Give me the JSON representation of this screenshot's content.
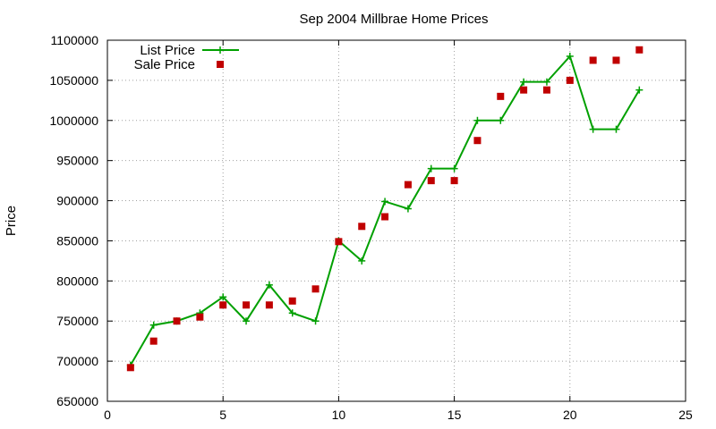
{
  "chart_data": {
    "type": "line",
    "title": "Sep 2004 Millbrae Home Prices",
    "xlabel": "",
    "ylabel": "Price",
    "xlim": [
      0,
      25
    ],
    "ylim": [
      650000,
      1100000
    ],
    "xticks": [
      0,
      5,
      10,
      15,
      20,
      25
    ],
    "yticks": [
      650000,
      700000,
      750000,
      800000,
      850000,
      900000,
      950000,
      1000000,
      1050000,
      1100000
    ],
    "grid": true,
    "legend_position": "top-left",
    "series": [
      {
        "name": "List Price",
        "style": "line-points",
        "marker": "plus",
        "color": "#00a000",
        "x": [
          1,
          2,
          3,
          4,
          5,
          6,
          7,
          8,
          9,
          10,
          11,
          12,
          13,
          14,
          15,
          16,
          17,
          18,
          19,
          20,
          21,
          22,
          23
        ],
        "values": [
          695000,
          745000,
          750000,
          760000,
          780000,
          750000,
          795000,
          760000,
          750000,
          850000,
          825000,
          899000,
          890000,
          940000,
          940000,
          1000000,
          1000000,
          1048000,
          1048000,
          1080000,
          989000,
          989000,
          1038000
        ]
      },
      {
        "name": "Sale Price",
        "style": "points",
        "marker": "square",
        "color": "#c00000",
        "x": [
          1,
          2,
          3,
          4,
          5,
          6,
          7,
          8,
          9,
          10,
          11,
          12,
          13,
          14,
          15,
          16,
          17,
          18,
          19,
          20,
          21,
          22,
          23
        ],
        "values": [
          692000,
          725000,
          750000,
          755000,
          770000,
          770000,
          770000,
          775000,
          790000,
          849000,
          868000,
          880000,
          920000,
          925000,
          925000,
          975000,
          1030000,
          1038000,
          1038000,
          1050000,
          1075000,
          1075000,
          1088000
        ]
      }
    ]
  }
}
